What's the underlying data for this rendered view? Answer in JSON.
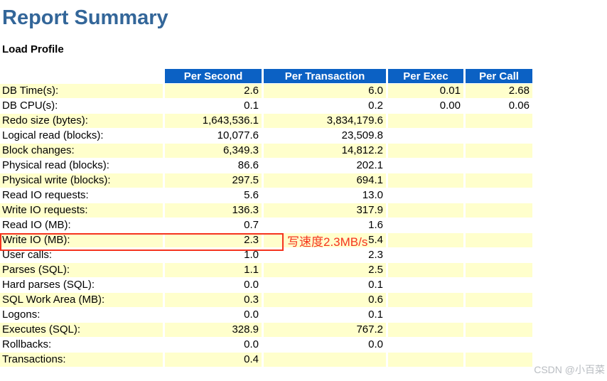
{
  "page": {
    "title": "Report Summary",
    "section_title": "Load Profile",
    "watermark": "CSDN @小百菜"
  },
  "annotation": {
    "text": "写速度2.3MB/s",
    "color": "#f5341f"
  },
  "colors": {
    "header_bg": "#0b61c4",
    "header_text": "#ffffff",
    "row_alt_bg": "#ffffcc",
    "title_color": "#336699"
  },
  "table": {
    "headers": [
      "",
      "Per Second",
      "Per Transaction",
      "Per Exec",
      "Per Call"
    ],
    "rows": [
      {
        "label": "DB Time(s):",
        "per_second": "2.6",
        "per_transaction": "6.0",
        "per_exec": "0.01",
        "per_call": "2.68"
      },
      {
        "label": "DB CPU(s):",
        "per_second": "0.1",
        "per_transaction": "0.2",
        "per_exec": "0.00",
        "per_call": "0.06"
      },
      {
        "label": "Redo size (bytes):",
        "per_second": "1,643,536.1",
        "per_transaction": "3,834,179.6",
        "per_exec": "",
        "per_call": ""
      },
      {
        "label": "Logical read (blocks):",
        "per_second": "10,077.6",
        "per_transaction": "23,509.8",
        "per_exec": "",
        "per_call": ""
      },
      {
        "label": "Block changes:",
        "per_second": "6,349.3",
        "per_transaction": "14,812.2",
        "per_exec": "",
        "per_call": ""
      },
      {
        "label": "Physical read (blocks):",
        "per_second": "86.6",
        "per_transaction": "202.1",
        "per_exec": "",
        "per_call": ""
      },
      {
        "label": "Physical write (blocks):",
        "per_second": "297.5",
        "per_transaction": "694.1",
        "per_exec": "",
        "per_call": ""
      },
      {
        "label": "Read IO requests:",
        "per_second": "5.6",
        "per_transaction": "13.0",
        "per_exec": "",
        "per_call": ""
      },
      {
        "label": "Write IO requests:",
        "per_second": "136.3",
        "per_transaction": "317.9",
        "per_exec": "",
        "per_call": ""
      },
      {
        "label": "Read IO (MB):",
        "per_second": "0.7",
        "per_transaction": "1.6",
        "per_exec": "",
        "per_call": ""
      },
      {
        "label": "Write IO (MB):",
        "per_second": "2.3",
        "per_transaction": "5.4",
        "per_exec": "",
        "per_call": ""
      },
      {
        "label": "User calls:",
        "per_second": "1.0",
        "per_transaction": "2.3",
        "per_exec": "",
        "per_call": ""
      },
      {
        "label": "Parses (SQL):",
        "per_second": "1.1",
        "per_transaction": "2.5",
        "per_exec": "",
        "per_call": ""
      },
      {
        "label": "Hard parses (SQL):",
        "per_second": "0.0",
        "per_transaction": "0.1",
        "per_exec": "",
        "per_call": ""
      },
      {
        "label": "SQL Work Area (MB):",
        "per_second": "0.3",
        "per_transaction": "0.6",
        "per_exec": "",
        "per_call": ""
      },
      {
        "label": "Logons:",
        "per_second": "0.0",
        "per_transaction": "0.1",
        "per_exec": "",
        "per_call": ""
      },
      {
        "label": "Executes (SQL):",
        "per_second": "328.9",
        "per_transaction": "767.2",
        "per_exec": "",
        "per_call": ""
      },
      {
        "label": "Rollbacks:",
        "per_second": "0.0",
        "per_transaction": "0.0",
        "per_exec": "",
        "per_call": ""
      },
      {
        "label": "Transactions:",
        "per_second": "0.4",
        "per_transaction": "",
        "per_exec": "",
        "per_call": ""
      }
    ]
  }
}
